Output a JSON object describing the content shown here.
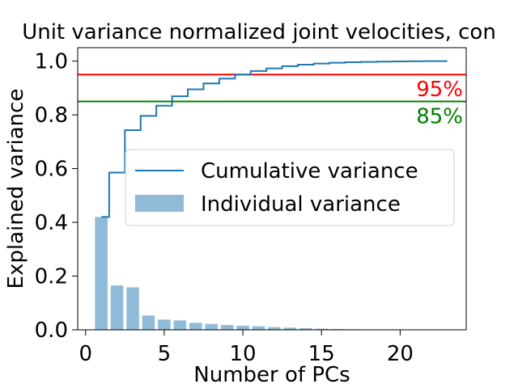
{
  "chart_data": {
    "type": "bar",
    "title": "Unit variance normalized joint velocities, con",
    "xlabel": "Number of PCs",
    "ylabel": "Explained variance",
    "xlim": [
      -0.5,
      24.2
    ],
    "ylim": [
      0.0,
      1.05
    ],
    "xticks": [
      0,
      5,
      10,
      15,
      20
    ],
    "yticks": [
      0.0,
      0.2,
      0.4,
      0.6,
      0.8,
      1.0
    ],
    "xtick_labels": [
      "0",
      "5",
      "10",
      "15",
      "20"
    ],
    "ytick_labels": [
      "0.0",
      "0.2",
      "0.4",
      "0.6",
      "0.8",
      "1.0"
    ],
    "grid": false,
    "legend_position": "center-right",
    "series": [
      {
        "name": "Individual variance",
        "type": "bar",
        "color": "#1f77b4",
        "alpha": 0.5,
        "x": [
          1,
          2,
          3,
          4,
          5,
          6,
          7,
          8,
          9,
          10,
          11,
          12,
          13,
          14,
          15,
          16,
          17,
          18,
          19,
          20,
          21,
          22,
          23
        ],
        "values": [
          0.42,
          0.165,
          0.158,
          0.053,
          0.038,
          0.035,
          0.026,
          0.022,
          0.018,
          0.015,
          0.013,
          0.01,
          0.008,
          0.006,
          0.004,
          0.003,
          0.002,
          0.001,
          0.001,
          0.001,
          0.0005,
          0.0005,
          0.0003
        ]
      },
      {
        "name": "Cumulative variance",
        "type": "step",
        "color": "#1f77b4",
        "x": [
          1,
          2,
          3,
          4,
          5,
          6,
          7,
          8,
          9,
          10,
          11,
          12,
          13,
          14,
          15,
          16,
          17,
          18,
          19,
          20,
          21,
          22,
          23
        ],
        "values": [
          0.42,
          0.585,
          0.743,
          0.796,
          0.834,
          0.869,
          0.895,
          0.917,
          0.935,
          0.95,
          0.963,
          0.973,
          0.981,
          0.987,
          0.991,
          0.994,
          0.996,
          0.997,
          0.998,
          0.999,
          0.9995,
          0.9998,
          1.0
        ]
      }
    ],
    "reference_lines": [
      {
        "y": 0.95,
        "label": "95%",
        "color": "#ff0000"
      },
      {
        "y": 0.85,
        "label": "85%",
        "color": "#008000"
      }
    ]
  }
}
